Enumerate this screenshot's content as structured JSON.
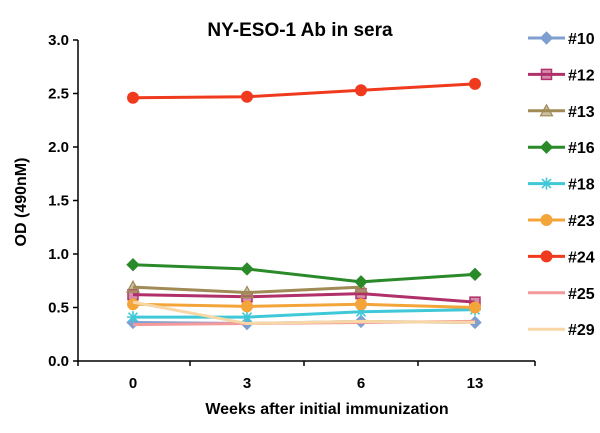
{
  "chart_data": {
    "type": "line",
    "title": "NY-ESO-1 Ab in sera",
    "xlabel": "Weeks after initial immunization",
    "ylabel": "OD (490nM)",
    "categories": [
      "0",
      "3",
      "6",
      "13"
    ],
    "ylim": [
      0,
      3.0
    ],
    "yticks": [
      "0.0",
      "0.5",
      "1.0",
      "1.5",
      "2.0",
      "2.5",
      "3.0"
    ],
    "grid": false,
    "legend_position": "right",
    "series": [
      {
        "name": "#10",
        "color": "#7f9fd0",
        "marker": "diamond",
        "values": [
          0.36,
          0.35,
          0.37,
          0.36
        ]
      },
      {
        "name": "#12",
        "color": "#b0306a",
        "marker": "square",
        "values": [
          0.62,
          0.6,
          0.63,
          0.55
        ]
      },
      {
        "name": "#13",
        "color": "#a08a55",
        "marker": "triangle",
        "values": [
          0.69,
          0.64,
          0.69,
          null
        ]
      },
      {
        "name": "#16",
        "color": "#2a8a2a",
        "marker": "diamond",
        "values": [
          0.9,
          0.86,
          0.74,
          0.81
        ]
      },
      {
        "name": "#18",
        "color": "#3ec8d8",
        "marker": "star",
        "values": [
          0.41,
          0.41,
          0.46,
          0.48
        ]
      },
      {
        "name": "#23",
        "color": "#f4a53a",
        "marker": "circle",
        "values": [
          0.53,
          0.51,
          0.53,
          0.5
        ]
      },
      {
        "name": "#24",
        "color": "#f03a1e",
        "marker": "circle",
        "values": [
          2.46,
          2.47,
          2.53,
          2.59
        ]
      },
      {
        "name": "#25",
        "color": "#f49a9a",
        "marker": "none",
        "values": [
          0.34,
          0.35,
          0.36,
          0.37
        ]
      },
      {
        "name": "#29",
        "color": "#f7d7a5",
        "marker": "none",
        "values": [
          0.55,
          0.35,
          0.37,
          0.36
        ]
      }
    ]
  }
}
